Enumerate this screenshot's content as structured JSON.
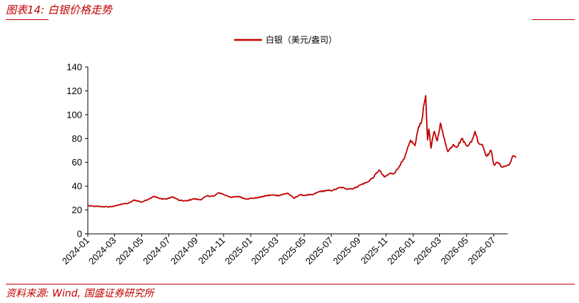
{
  "header": {
    "title": "图表14:  白银价格走势",
    "accent_color": "#c00000"
  },
  "footer": {
    "source": "资料来源:  Wind,  国盛证券研究所"
  },
  "chart_data": {
    "type": "line",
    "title": "",
    "xlabel": "",
    "ylabel": "",
    "ylim": [
      0,
      140
    ],
    "yticks": [
      0,
      20,
      40,
      60,
      80,
      100,
      120,
      140
    ],
    "xlim": [
      "2024-01",
      "2026-08"
    ],
    "xticks": [
      "2024-01",
      "2024-03",
      "2024-05",
      "2024-07",
      "2024-09",
      "2024-11",
      "2025-01",
      "2025-03",
      "2025-05",
      "2025-07",
      "2025-09",
      "2025-11",
      "2026-01",
      "2026-03",
      "2026-05",
      "2026-07"
    ],
    "grid": false,
    "legend": "top-center",
    "series": [
      {
        "name": "白银（美元/盎司）",
        "color": "#c00000",
        "points": [
          [
            "2024-01-02",
            23.6
          ],
          [
            "2024-01-15",
            23.1
          ],
          [
            "2024-02-01",
            22.9
          ],
          [
            "2024-02-15",
            22.6
          ],
          [
            "2024-03-01",
            23.2
          ],
          [
            "2024-03-15",
            24.9
          ],
          [
            "2024-04-01",
            25.6
          ],
          [
            "2024-04-15",
            28.4
          ],
          [
            "2024-05-01",
            26.6
          ],
          [
            "2024-05-15",
            28.9
          ],
          [
            "2024-05-28",
            31.6
          ],
          [
            "2024-06-10",
            29.6
          ],
          [
            "2024-06-25",
            29.2
          ],
          [
            "2024-07-10",
            31.0
          ],
          [
            "2024-07-25",
            28.0
          ],
          [
            "2024-08-10",
            27.6
          ],
          [
            "2024-08-25",
            29.4
          ],
          [
            "2024-09-10",
            28.6
          ],
          [
            "2024-09-25",
            31.8
          ],
          [
            "2024-10-10",
            31.6
          ],
          [
            "2024-10-22",
            34.6
          ],
          [
            "2024-11-05",
            32.4
          ],
          [
            "2024-11-20",
            30.6
          ],
          [
            "2024-12-05",
            31.4
          ],
          [
            "2024-12-20",
            29.4
          ],
          [
            "2025-01-05",
            29.8
          ],
          [
            "2025-01-20",
            30.6
          ],
          [
            "2025-02-05",
            32.0
          ],
          [
            "2025-02-20",
            32.6
          ],
          [
            "2025-03-05",
            32.2
          ],
          [
            "2025-03-25",
            34.2
          ],
          [
            "2025-04-08",
            29.8
          ],
          [
            "2025-04-20",
            32.6
          ],
          [
            "2025-05-05",
            32.4
          ],
          [
            "2025-05-20",
            32.8
          ],
          [
            "2025-06-05",
            35.6
          ],
          [
            "2025-06-20",
            36.2
          ],
          [
            "2025-07-05",
            36.6
          ],
          [
            "2025-07-22",
            39.0
          ],
          [
            "2025-08-05",
            37.8
          ],
          [
            "2025-08-20",
            38.0
          ],
          [
            "2025-09-05",
            41.2
          ],
          [
            "2025-09-20",
            43.4
          ],
          [
            "2025-10-05",
            48.0
          ],
          [
            "2025-10-16",
            53.6
          ],
          [
            "2025-10-28",
            47.6
          ],
          [
            "2025-11-10",
            50.6
          ],
          [
            "2025-11-20",
            51.0
          ],
          [
            "2025-12-01",
            57.0
          ],
          [
            "2025-12-12",
            63.0
          ],
          [
            "2025-12-26",
            78.6
          ],
          [
            "2026-01-05",
            74.0
          ],
          [
            "2026-01-13",
            90.0
          ],
          [
            "2026-01-20",
            94.6
          ],
          [
            "2026-01-26",
            110.0
          ],
          [
            "2026-01-29",
            116.0
          ],
          [
            "2026-02-02",
            79.0
          ],
          [
            "2026-02-05",
            88.0
          ],
          [
            "2026-02-10",
            72.0
          ],
          [
            "2026-02-17",
            86.0
          ],
          [
            "2026-02-24",
            78.0
          ],
          [
            "2026-03-03",
            93.0
          ],
          [
            "2026-03-10",
            82.0
          ],
          [
            "2026-03-20",
            69.0
          ],
          [
            "2026-04-01",
            75.0
          ],
          [
            "2026-04-10",
            73.0
          ],
          [
            "2026-04-20",
            80.0
          ],
          [
            "2026-05-01",
            74.0
          ],
          [
            "2026-05-12",
            77.0
          ],
          [
            "2026-05-20",
            86.0
          ],
          [
            "2026-05-28",
            76.0
          ],
          [
            "2026-06-05",
            75.0
          ],
          [
            "2026-06-15",
            65.0
          ],
          [
            "2026-06-25",
            70.0
          ],
          [
            "2026-07-01",
            58.0
          ],
          [
            "2026-07-10",
            60.0
          ],
          [
            "2026-07-20",
            56.0
          ],
          [
            "2026-07-28",
            57.0
          ],
          [
            "2026-08-05",
            58.0
          ],
          [
            "2026-08-12",
            65.0
          ],
          [
            "2026-08-20",
            64.0
          ]
        ]
      }
    ]
  }
}
